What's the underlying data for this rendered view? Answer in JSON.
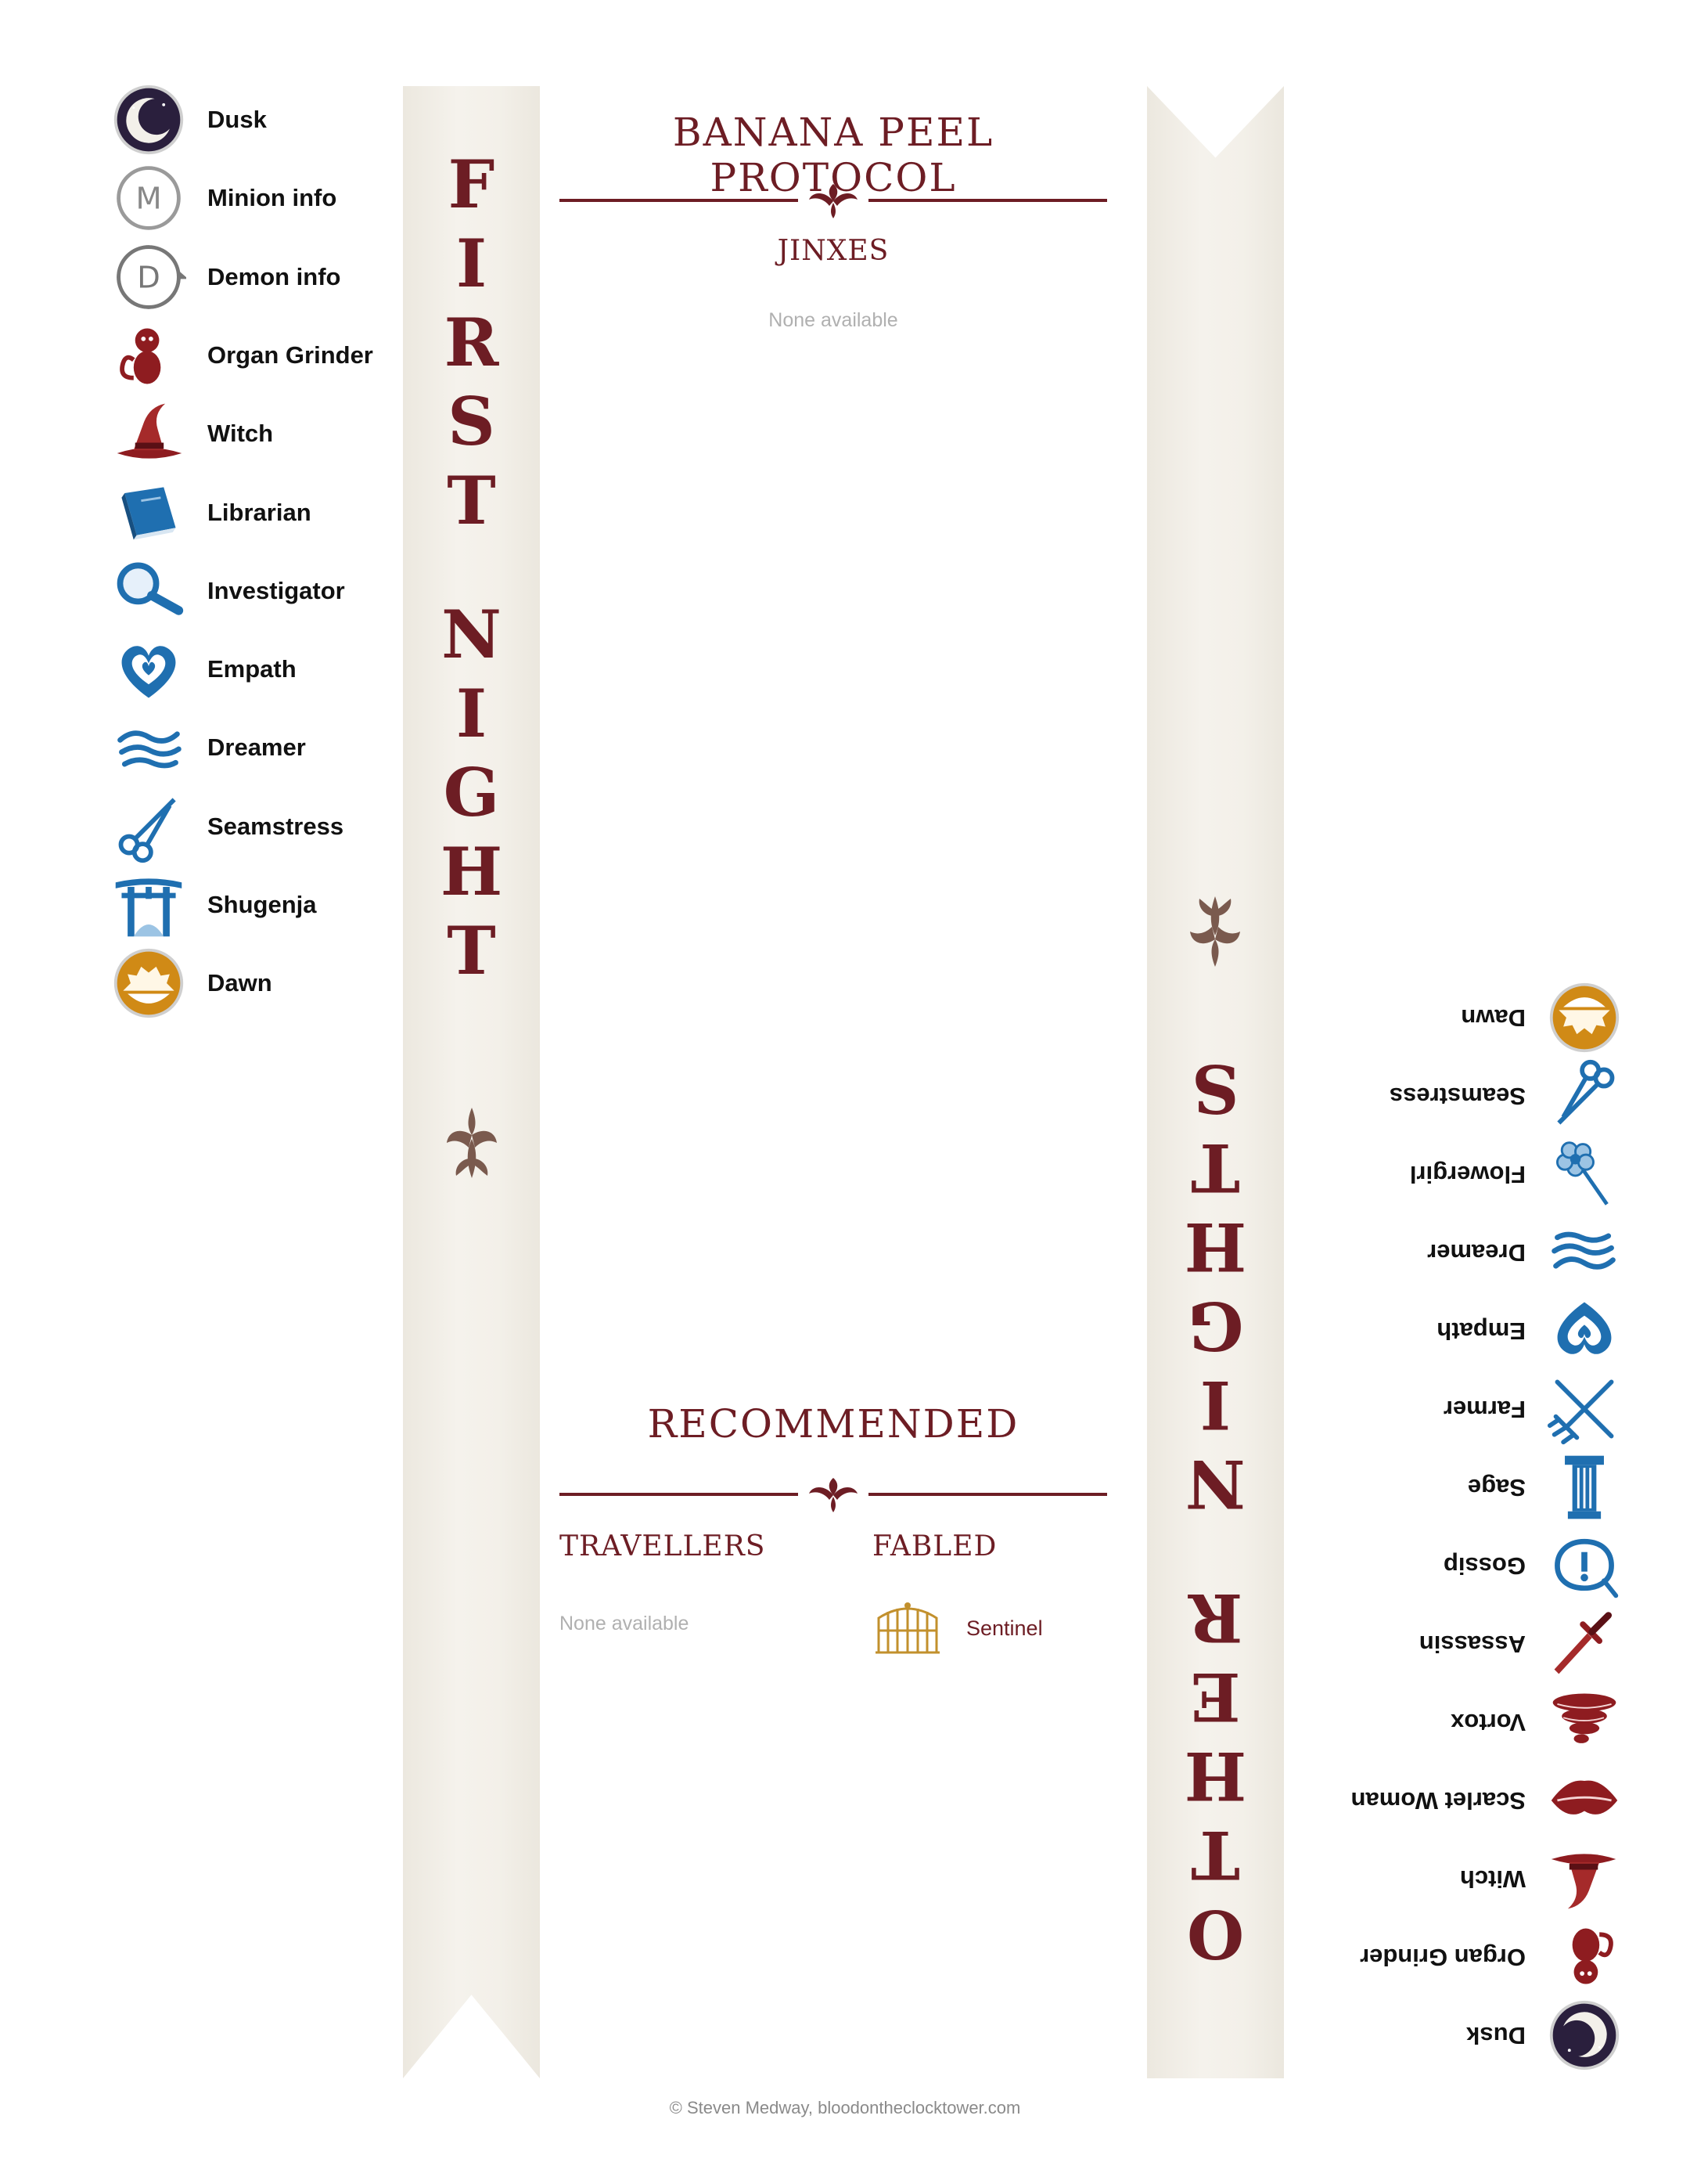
{
  "title": "BANANA PEEL PROTOCOL",
  "jinxes": {
    "heading": "JINXES",
    "empty_text": "None available"
  },
  "recommended": {
    "heading": "RECOMMENDED",
    "travellers": {
      "heading": "TRAVELLERS",
      "empty_text": "None available"
    },
    "fabled": {
      "heading": "FABLED",
      "items": [
        {
          "label": "Sentinel",
          "icon": "gate-icon"
        }
      ]
    }
  },
  "first_night": {
    "banner_words": [
      "FIRST",
      "NIGHT"
    ],
    "items": [
      {
        "label": "Dusk",
        "icon": "moon-icon"
      },
      {
        "label": "Minion info",
        "icon": "minion-m-icon"
      },
      {
        "label": "Demon info",
        "icon": "demon-d-icon"
      },
      {
        "label": "Organ Grinder",
        "icon": "monkey-icon"
      },
      {
        "label": "Witch",
        "icon": "witch-hat-icon"
      },
      {
        "label": "Librarian",
        "icon": "book-icon"
      },
      {
        "label": "Investigator",
        "icon": "magnifier-icon"
      },
      {
        "label": "Empath",
        "icon": "heart-icon"
      },
      {
        "label": "Dreamer",
        "icon": "cloud-icon"
      },
      {
        "label": "Seamstress",
        "icon": "scissors-icon"
      },
      {
        "label": "Shugenja",
        "icon": "torii-icon"
      },
      {
        "label": "Dawn",
        "icon": "sun-icon"
      }
    ]
  },
  "other_night": {
    "banner_words": [
      "OTHER",
      "NIGHTS"
    ],
    "items": [
      {
        "label": "Dusk",
        "icon": "moon-icon"
      },
      {
        "label": "Organ Grinder",
        "icon": "monkey-icon"
      },
      {
        "label": "Witch",
        "icon": "witch-hat-icon"
      },
      {
        "label": "Scarlet Woman",
        "icon": "lips-icon"
      },
      {
        "label": "Vortox",
        "icon": "vortex-icon"
      },
      {
        "label": "Assassin",
        "icon": "dagger-icon"
      },
      {
        "label": "Gossip",
        "icon": "speech-icon"
      },
      {
        "label": "Sage",
        "icon": "pillar-icon"
      },
      {
        "label": "Farmer",
        "icon": "pitchfork-icon"
      },
      {
        "label": "Empath",
        "icon": "heart-icon"
      },
      {
        "label": "Dreamer",
        "icon": "cloud-icon"
      },
      {
        "label": "Flowergirl",
        "icon": "flower-icon"
      },
      {
        "label": "Seamstress",
        "icon": "scissors-icon"
      },
      {
        "label": "Dawn",
        "icon": "sun-icon"
      }
    ]
  },
  "footer": "© Steven Medway, bloodontheclocktower.com",
  "colors": {
    "accent": "#6d1d24",
    "townsfolk": "#1f6fb0",
    "evil": "#8e1c20",
    "dawn": "#d08a16",
    "dusk": "#2a1f3d"
  }
}
